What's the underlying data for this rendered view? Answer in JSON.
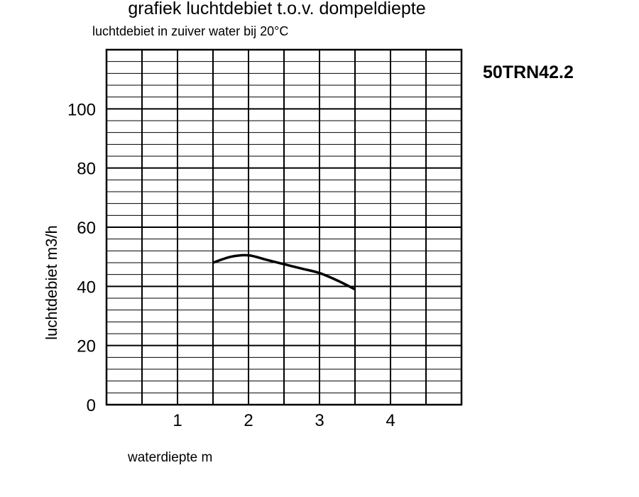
{
  "chart_data": {
    "type": "line",
    "title": "grafiek luchtdebiet t.o.v. dompeldiepte",
    "subtitle": "luchtdebiet in zuiver water bij 20°C",
    "model_label": "50TRN42.2",
    "xlabel": "waterdiepte m",
    "ylabel": "luchtdebiet m3/h",
    "xlim": [
      0,
      5
    ],
    "ylim": [
      0,
      120
    ],
    "x_major_step": 0.5,
    "y_major_step": 20,
    "y_minor_step": 4,
    "grid": true,
    "legend": "none",
    "x_tick_labels": [
      {
        "value": 1,
        "label": "1"
      },
      {
        "value": 2,
        "label": "2"
      },
      {
        "value": 3,
        "label": "3"
      },
      {
        "value": 4,
        "label": "4"
      }
    ],
    "y_tick_labels": [
      {
        "value": 0,
        "label": "0"
      },
      {
        "value": 20,
        "label": "20"
      },
      {
        "value": 40,
        "label": "40"
      },
      {
        "value": 60,
        "label": "60"
      },
      {
        "value": 80,
        "label": "80"
      },
      {
        "value": 100,
        "label": "100"
      }
    ],
    "series": [
      {
        "line_color": "#000000",
        "x": [
          1.5,
          1.75,
          2.0,
          2.25,
          2.5,
          2.75,
          3.0,
          3.25,
          3.5
        ],
        "y": [
          48,
          50,
          50.5,
          49,
          47.5,
          46,
          44.5,
          42,
          39
        ]
      }
    ]
  }
}
